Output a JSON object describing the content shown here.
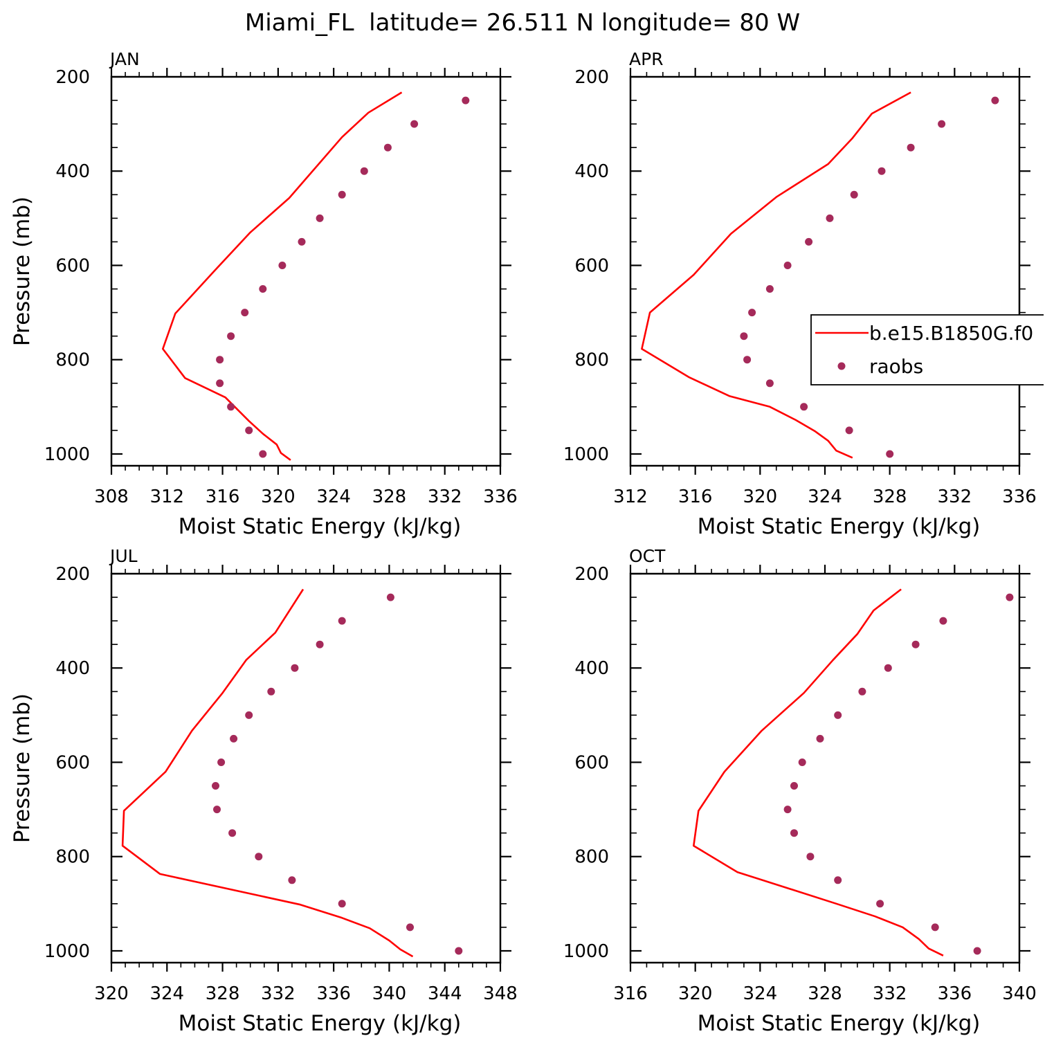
{
  "title": "Miami_FL  latitude= 26.511 N longitude= 80 W",
  "legend": {
    "model_label": "b.e15.B1850G.f0",
    "obs_label": "raobs"
  },
  "colors": {
    "model": "#ff0000",
    "obs": "#a52a5a"
  },
  "chart_data": [
    {
      "type": "line",
      "panel": "JAN",
      "title": "JAN",
      "xlabel": "Moist Static Energy (kJ/kg)",
      "ylabel": "Pressure (mb)",
      "xlim": [
        308,
        336
      ],
      "ylim": [
        200,
        1025
      ],
      "y_reversed": true,
      "xticks": [
        308,
        312,
        316,
        320,
        324,
        328,
        332,
        336
      ],
      "yticks": [
        200,
        400,
        600,
        800,
        1000
      ],
      "series": [
        {
          "name": "b.e15.B1850G.f0",
          "kind": "line",
          "x": [
            320.9,
            320.2,
            319.9,
            318.9,
            317.9,
            316.2,
            313.3,
            311.7,
            312.6,
            315.4,
            318.0,
            320.8,
            324.6,
            326.5,
            328.9
          ],
          "y": [
            1013,
            998,
            980,
            957,
            930,
            880,
            839,
            777,
            702,
            612,
            530,
            457,
            328,
            276,
            233
          ]
        },
        {
          "name": "raobs",
          "kind": "points",
          "x": [
            318.9,
            317.9,
            316.6,
            315.8,
            315.8,
            316.6,
            317.6,
            318.9,
            320.3,
            321.7,
            323.0,
            324.6,
            326.2,
            327.9,
            329.8,
            333.5
          ],
          "y": [
            1000,
            950,
            900,
            850,
            800,
            750,
            700,
            650,
            600,
            550,
            500,
            450,
            400,
            350,
            300,
            250
          ]
        }
      ]
    },
    {
      "type": "line",
      "panel": "APR",
      "title": "APR",
      "xlabel": "Moist Static Energy (kJ/kg)",
      "ylabel": "",
      "xlim": [
        312,
        336
      ],
      "ylim": [
        200,
        1025
      ],
      "y_reversed": true,
      "xticks": [
        312,
        316,
        320,
        324,
        328,
        332,
        336
      ],
      "yticks": [
        200,
        400,
        600,
        800,
        1000
      ],
      "series": [
        {
          "name": "b.e15.B1850G.f0",
          "kind": "line",
          "x": [
            325.7,
            324.7,
            324.2,
            323.4,
            322.2,
            320.6,
            318.1,
            315.6,
            312.7,
            313.2,
            315.9,
            318.2,
            321.0,
            324.2,
            325.7,
            326.9,
            329.3
          ],
          "y": [
            1008,
            993,
            972,
            952,
            928,
            900,
            877,
            837,
            777,
            700,
            620,
            533,
            455,
            385,
            330,
            278,
            233
          ]
        },
        {
          "name": "raobs",
          "kind": "points",
          "x": [
            328.0,
            325.5,
            322.7,
            320.6,
            319.2,
            319.0,
            319.5,
            320.6,
            321.7,
            323.0,
            324.3,
            325.8,
            327.5,
            329.3,
            331.2,
            334.5
          ],
          "y": [
            1000,
            950,
            900,
            850,
            800,
            750,
            700,
            650,
            600,
            550,
            500,
            450,
            400,
            350,
            300,
            250
          ]
        }
      ]
    },
    {
      "type": "line",
      "panel": "JUL",
      "title": "JUL",
      "xlabel": "Moist Static Energy (kJ/kg)",
      "ylabel": "Pressure (mb)",
      "xlim": [
        320,
        348
      ],
      "ylim": [
        200,
        1025
      ],
      "y_reversed": true,
      "xticks": [
        320,
        324,
        328,
        332,
        336,
        340,
        344,
        348
      ],
      "yticks": [
        200,
        400,
        600,
        800,
        1000
      ],
      "series": [
        {
          "name": "b.e15.B1850G.f0",
          "kind": "line",
          "x": [
            341.7,
            340.8,
            340.0,
            338.6,
            336.6,
            333.6,
            323.5,
            320.8,
            320.9,
            323.9,
            325.8,
            328.0,
            329.7,
            331.8,
            333.8
          ],
          "y": [
            1012,
            997,
            978,
            952,
            930,
            902,
            837,
            777,
            703,
            620,
            533,
            453,
            383,
            325,
            233
          ]
        },
        {
          "name": "raobs",
          "kind": "points",
          "x": [
            345.0,
            341.5,
            336.6,
            333.0,
            330.6,
            328.7,
            327.6,
            327.5,
            327.9,
            328.8,
            329.9,
            331.5,
            333.2,
            335.0,
            336.6,
            340.1
          ],
          "y": [
            1000,
            950,
            900,
            850,
            800,
            750,
            700,
            650,
            600,
            550,
            500,
            450,
            400,
            350,
            300,
            250
          ]
        }
      ]
    },
    {
      "type": "line",
      "panel": "OCT",
      "title": "OCT",
      "xlabel": "Moist Static Energy (kJ/kg)",
      "ylabel": "",
      "xlim": [
        316,
        340
      ],
      "ylim": [
        200,
        1025
      ],
      "y_reversed": true,
      "xticks": [
        316,
        320,
        324,
        328,
        332,
        336,
        340
      ],
      "yticks": [
        200,
        400,
        600,
        800,
        1000
      ],
      "series": [
        {
          "name": "b.e15.B1850G.f0",
          "kind": "line",
          "x": [
            335.3,
            334.4,
            333.8,
            332.8,
            331.1,
            328.7,
            322.6,
            319.9,
            320.2,
            321.8,
            324.1,
            326.7,
            328.5,
            330.0,
            331.0,
            332.7
          ],
          "y": [
            1010,
            995,
            975,
            950,
            927,
            900,
            833,
            777,
            703,
            620,
            533,
            453,
            383,
            328,
            278,
            233
          ]
        },
        {
          "name": "raobs",
          "kind": "points",
          "x": [
            337.4,
            334.8,
            331.4,
            328.8,
            327.1,
            326.1,
            325.7,
            326.1,
            326.6,
            327.7,
            328.8,
            330.3,
            331.9,
            333.6,
            335.3,
            339.4
          ],
          "y": [
            1000,
            950,
            900,
            850,
            800,
            750,
            700,
            650,
            600,
            550,
            500,
            450,
            400,
            350,
            300,
            250
          ]
        }
      ]
    }
  ]
}
